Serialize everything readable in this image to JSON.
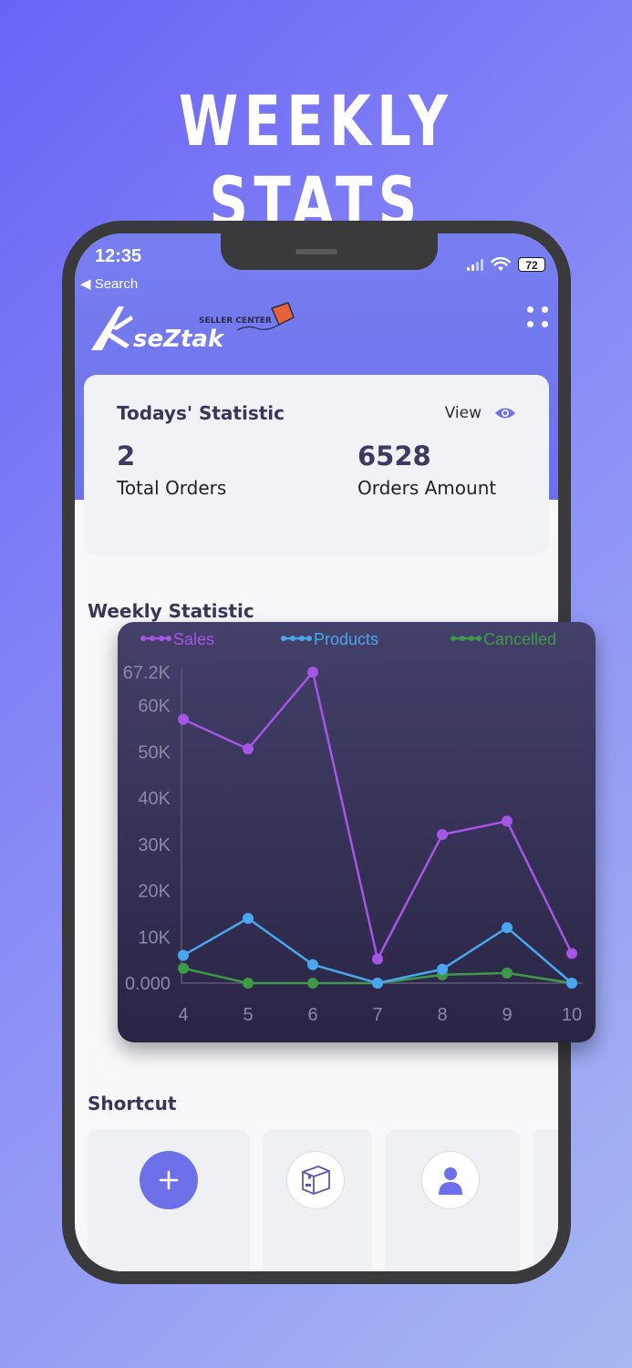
{
  "headline": "WEEKLY STATS",
  "status_bar": {
    "time": "12:35",
    "back": "◀ Search",
    "battery": "72"
  },
  "brand": {
    "logo_text": "seZtak",
    "logo_sub": "SELLER CENTER"
  },
  "today": {
    "title": "Todays' Statistic",
    "view_label": "View",
    "total_orders_value": "2",
    "total_orders_label": "Total Orders",
    "orders_amount_value": "6528",
    "orders_amount_label": "Orders Amount"
  },
  "weekly": {
    "title": "Weekly Statistic"
  },
  "shortcut": {
    "title": "Shortcut",
    "items": [
      "add-icon",
      "box-icon",
      "user-icon"
    ]
  },
  "colors": {
    "sales": "#a656e6",
    "products": "#4aa6ee",
    "cancelled": "#3f9a48",
    "accent": "#6e70ea"
  },
  "chart_data": {
    "type": "line",
    "x": [
      4,
      5,
      6,
      7,
      8,
      9,
      10
    ],
    "y_ticks": [
      "0.000",
      "10K",
      "20K",
      "30K",
      "40K",
      "50K",
      "60K",
      "67.2K"
    ],
    "ylim": [
      0,
      67200
    ],
    "legend_position": "top",
    "series": [
      {
        "name": "Sales",
        "color": "#a656e6",
        "values": [
          57000,
          50600,
          67200,
          5200,
          32100,
          35000,
          6400
        ]
      },
      {
        "name": "Products",
        "color": "#4aa6ee",
        "values": [
          6000,
          14000,
          4000,
          0,
          3000,
          12000,
          0
        ]
      },
      {
        "name": "Cancelled",
        "color": "#3f9a48",
        "values": [
          3200,
          0,
          0,
          0,
          1800,
          2200,
          0
        ]
      }
    ]
  }
}
